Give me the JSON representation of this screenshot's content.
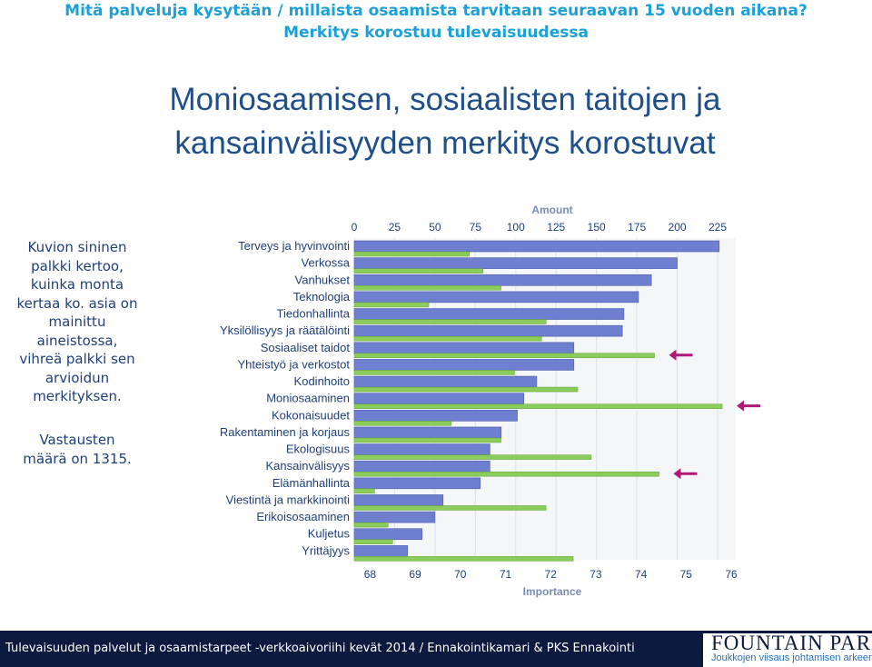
{
  "header": {
    "question": "Mitä palveluja kysytään / millaista osaamista tarvitaan seuraavan 15 vuoden aikana?",
    "subtitle": "Merkitys korostuu tulevaisuudessa"
  },
  "slide_title_line1": "Moniosaamisen, sosiaalisten taitojen ja",
  "slide_title_line2": "kansainvälisyyden merkitys korostuvat",
  "side_note": {
    "lines": [
      "Kuvion sininen",
      "palkki kertoo,",
      "kuinka monta",
      "kertaa ko. asia on",
      "mainittu",
      "aineistossa,",
      "vihreä palkki sen",
      "arvioidun",
      "merkityksen."
    ],
    "count_lines": [
      "Vastausten",
      "määrä on 1315."
    ]
  },
  "footer": {
    "text": "Tulevaisuuden palvelut ja osaamistarpeet -verkkoaivoriihi kevät 2014 / Ennakointikamari & PKS Ennakointi",
    "logo_main": "FOUNTAIN PARK",
    "logo_sub": "Joukkojen viisaus johtamisen arkeen"
  },
  "colors": {
    "amount_bar": "#6f7fd0",
    "importance_bar": "#8ccc5c",
    "arrow": "#b01878",
    "footer_bg": "#0d1a40"
  },
  "chart_data": {
    "type": "bar",
    "orientation": "horizontal",
    "top_axis_title": "Amount",
    "bottom_axis_title": "Importance",
    "amount_ticks": [
      0,
      25,
      50,
      75,
      100,
      125,
      150,
      175,
      200,
      225
    ],
    "amount_range": [
      0,
      225
    ],
    "importance_ticks": [
      68,
      69,
      70,
      71,
      72,
      73,
      74,
      75,
      76
    ],
    "importance_range": [
      67.65,
      76
    ],
    "categories": [
      "Terveys ja hyvinvointi",
      "Verkossa",
      "Vanhukset",
      "Teknologia",
      "Tiedonhallinta",
      "Yksilöllisyys ja räätälöinti",
      "Sosiaaliset taidot",
      "Yhteistyö ja verkostot",
      "Kodinhoito",
      "Moniosaaminen",
      "Kokonaisuudet",
      "Rakentaminen ja korjaus",
      "Ekologisuus",
      "Kansainvälisyys",
      "Elämänhallinta",
      "Viestintä ja markkinointi",
      "Erikoisosaaminen",
      "Kuljetus",
      "Yrittäjyys"
    ],
    "series": [
      {
        "name": "Amount",
        "values": [
          226,
          200,
          184,
          176,
          167,
          166,
          136,
          136,
          113,
          105,
          101,
          91,
          84,
          84,
          78,
          55,
          50,
          42,
          33
        ]
      },
      {
        "name": "Importance",
        "values": [
          70.2,
          70.5,
          70.9,
          69.3,
          71.9,
          71.8,
          74.3,
          71.2,
          72.6,
          75.8,
          69.8,
          70.9,
          72.9,
          74.4,
          68.1,
          71.9,
          68.4,
          68.5,
          72.5
        ]
      }
    ],
    "highlighted": [
      "Sosiaaliset taidot",
      "Moniosaaminen",
      "Kansainvälisyys"
    ]
  }
}
